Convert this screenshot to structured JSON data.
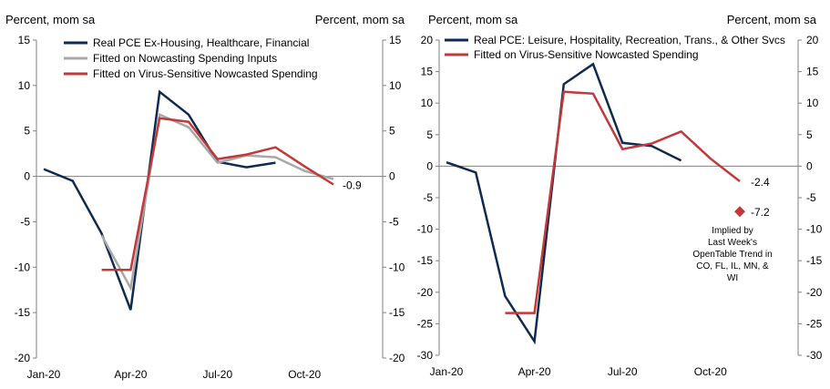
{
  "chart_data": [
    {
      "type": "line",
      "left_axis_title": "Percent, mom sa",
      "right_axis_title": "Percent, mom sa",
      "ylim": [
        -20,
        15
      ],
      "yticks": [
        15,
        10,
        5,
        0,
        -5,
        -10,
        -15,
        -20
      ],
      "xlim": [
        0,
        12.5
      ],
      "xticks": [
        {
          "x": 0,
          "label": "Jan-20"
        },
        {
          "x": 3,
          "label": "Apr-20"
        },
        {
          "x": 6,
          "label": "Jul-20"
        },
        {
          "x": 9,
          "label": "Oct-20"
        }
      ],
      "series": [
        {
          "name": "Real PCE Ex-Housing, Healthcare, Financial",
          "color": "#0e2b4f",
          "width": 2.5,
          "points": [
            [
              0,
              0.8
            ],
            [
              1,
              -0.5
            ],
            [
              2,
              -6.3
            ],
            [
              3,
              -14.7
            ],
            [
              4,
              9.3
            ],
            [
              5,
              6.8
            ],
            [
              6,
              1.6
            ],
            [
              7,
              1.0
            ],
            [
              8,
              1.5
            ]
          ]
        },
        {
          "name": "Fitted on Nowcasting Spending Inputs",
          "color": "#a8a8a8",
          "width": 2.5,
          "points": [
            [
              2,
              -6.5
            ],
            [
              3,
              -12.3
            ],
            [
              4,
              6.8
            ],
            [
              5,
              5.4
            ],
            [
              6,
              1.5
            ],
            [
              7,
              2.3
            ],
            [
              8,
              2.1
            ],
            [
              9,
              0.6
            ],
            [
              10,
              -0.3
            ]
          ]
        },
        {
          "name": "Fitted on Virus-Sensitive Nowcasted Spending",
          "color": "#c0393b",
          "width": 2.5,
          "points": [
            [
              2,
              -10.3
            ],
            [
              3,
              -10.3
            ],
            [
              4,
              6.4
            ],
            [
              5,
              6.0
            ],
            [
              6,
              1.9
            ],
            [
              7,
              2.4
            ],
            [
              8,
              3.2
            ],
            [
              9,
              1.1
            ],
            [
              10,
              -0.9
            ]
          ]
        }
      ],
      "annotations": [
        {
          "text": "-0.9",
          "x": 10,
          "y": -0.9
        }
      ]
    },
    {
      "type": "line",
      "left_axis_title": "Percent, mom sa",
      "right_axis_title": "Percent, mom sa",
      "ylim": [
        -30,
        20
      ],
      "yticks": [
        20,
        15,
        10,
        5,
        0,
        -5,
        -10,
        -15,
        -20,
        -25,
        -30
      ],
      "xlim": [
        0,
        12.5
      ],
      "xticks": [
        {
          "x": 0,
          "label": "Jan-20"
        },
        {
          "x": 3,
          "label": "Apr-20"
        },
        {
          "x": 6,
          "label": "Jul-20"
        },
        {
          "x": 9,
          "label": "Oct-20"
        }
      ],
      "series": [
        {
          "name": "Real PCE: Leisure, Hospitality, Recreation, Trans., & Other Svcs",
          "color": "#0e2b4f",
          "width": 2.5,
          "points": [
            [
              0,
              0.6
            ],
            [
              1,
              -1.0
            ],
            [
              2,
              -20.6
            ],
            [
              3,
              -27.8
            ],
            [
              4,
              13.0
            ],
            [
              5,
              16.2
            ],
            [
              6,
              3.7
            ],
            [
              7,
              3.2
            ],
            [
              8,
              0.9
            ]
          ]
        },
        {
          "name": "Fitted on Virus-Sensitive Nowcasted Spending",
          "color": "#c0393b",
          "width": 2.5,
          "points": [
            [
              2,
              -23.3
            ],
            [
              3,
              -23.3
            ],
            [
              4,
              11.8
            ],
            [
              5,
              11.5
            ],
            [
              6,
              2.7
            ],
            [
              7,
              3.6
            ],
            [
              8,
              5.5
            ],
            [
              9,
              1.2
            ],
            [
              10,
              -2.4
            ]
          ]
        }
      ],
      "implied_point": {
        "x": 10,
        "y": -7.2,
        "color": "#c0393b"
      },
      "annotations": [
        {
          "text": "-2.4",
          "x": 10,
          "y": -2.4
        },
        {
          "text": "-7.2",
          "x": 10,
          "y": -7.2
        }
      ],
      "note_lines": [
        "Implied by",
        "Last Week's",
        "OpenTable Trend in",
        "CO, FL, IL, MN, &",
        "WI"
      ]
    }
  ]
}
